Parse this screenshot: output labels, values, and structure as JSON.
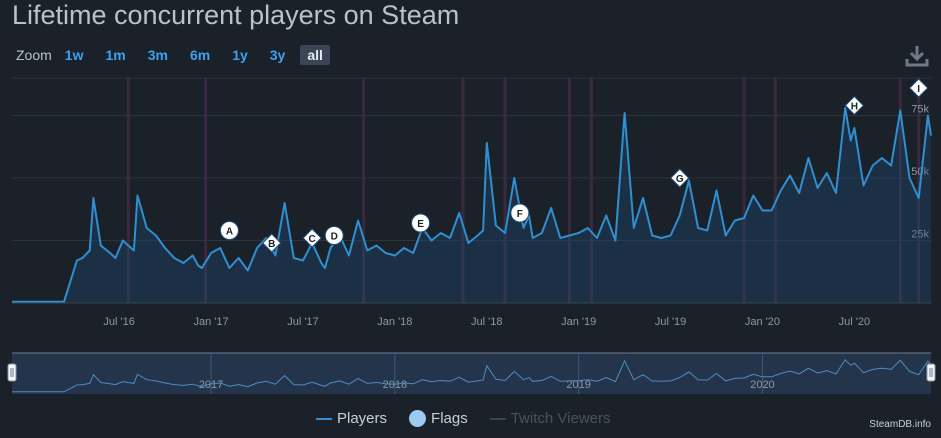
{
  "title": "Lifetime concurrent players on Steam",
  "zoom": {
    "label": "Zoom",
    "buttons": [
      "1w",
      "1m",
      "3m",
      "6m",
      "1y",
      "3y",
      "all"
    ],
    "active": "all"
  },
  "download_icon": "download-icon",
  "legend": {
    "players": "Players",
    "flags": "Flags",
    "twitch": "Twitch Viewers"
  },
  "credit": "SteamDB.info",
  "colors": {
    "background": "#1b2129",
    "players_line": "#2f8fd0",
    "players_fill": "#1e4e78",
    "flags": "#9cc8f2",
    "band": "#3b2840",
    "grid": "#2c343e",
    "navigator": "#2b4363",
    "text": "#c7d0d9"
  },
  "chart_data": {
    "type": "line",
    "title": "Lifetime concurrent players on Steam",
    "xlabel": "",
    "ylabel": "",
    "x_range": [
      2015.917,
      2020.917
    ],
    "y_range": [
      0,
      90000
    ],
    "ylim": [
      0,
      90000
    ],
    "y_ticks": [
      25000,
      50000,
      75000
    ],
    "y_tick_labels": [
      "25k",
      "50k",
      "75k"
    ],
    "x_ticks": [
      2016.5,
      2017.0,
      2017.5,
      2018.0,
      2018.5,
      2019.0,
      2019.5,
      2020.0,
      2020.5
    ],
    "x_tick_labels": [
      "Jul '16",
      "Jan '17",
      "Jul '17",
      "Jan '18",
      "Jul '18",
      "Jan '19",
      "Jul '19",
      "Jan '20",
      "Jul '20"
    ],
    "navigator_ticks": [
      2017.0,
      2018.0,
      2019.0,
      2020.0
    ],
    "navigator_labels": [
      "2017",
      "2018",
      "2019",
      "2020"
    ],
    "series": [
      {
        "name": "Players",
        "x": [
          2015.917,
          2016.2,
          2016.27,
          2016.3,
          2016.34,
          2016.36,
          2016.4,
          2016.45,
          2016.48,
          2016.52,
          2016.55,
          2016.58,
          2016.6,
          2016.65,
          2016.7,
          2016.75,
          2016.8,
          2016.85,
          2016.9,
          2016.93,
          2016.95,
          2017.0,
          2017.05,
          2017.1,
          2017.15,
          2017.2,
          2017.25,
          2017.3,
          2017.35,
          2017.4,
          2017.45,
          2017.5,
          2017.55,
          2017.6,
          2017.62,
          2017.65,
          2017.7,
          2017.75,
          2017.8,
          2017.85,
          2017.9,
          2017.95,
          2018.0,
          2018.05,
          2018.1,
          2018.15,
          2018.2,
          2018.25,
          2018.3,
          2018.35,
          2018.4,
          2018.45,
          2018.48,
          2018.5,
          2018.55,
          2018.6,
          2018.65,
          2018.7,
          2018.73,
          2018.75,
          2018.8,
          2018.85,
          2018.9,
          2018.95,
          2019.0,
          2019.05,
          2019.1,
          2019.15,
          2019.2,
          2019.25,
          2019.3,
          2019.35,
          2019.4,
          2019.45,
          2019.5,
          2019.55,
          2019.6,
          2019.65,
          2019.7,
          2019.75,
          2019.8,
          2019.85,
          2019.9,
          2019.95,
          2020.0,
          2020.05,
          2020.1,
          2020.15,
          2020.2,
          2020.25,
          2020.3,
          2020.35,
          2020.4,
          2020.45,
          2020.48,
          2020.5,
          2020.55,
          2020.6,
          2020.65,
          2020.7,
          2020.75,
          2020.8,
          2020.85,
          2020.9,
          2020.917
        ],
        "y": [
          500,
          500,
          17000,
          18000,
          21000,
          42000,
          23000,
          20000,
          18000,
          25000,
          23000,
          21000,
          43000,
          30000,
          27000,
          22000,
          18000,
          16000,
          19000,
          15000,
          14000,
          20000,
          22000,
          14000,
          18000,
          13000,
          22000,
          26000,
          19000,
          40000,
          18000,
          17000,
          24000,
          16000,
          14000,
          22000,
          27000,
          19000,
          33000,
          21000,
          23000,
          20000,
          19000,
          22000,
          20000,
          30000,
          25000,
          28000,
          26000,
          36000,
          24000,
          27000,
          29000,
          64000,
          31000,
          28000,
          50000,
          30000,
          35000,
          26000,
          28000,
          38000,
          26000,
          27000,
          28000,
          30000,
          26000,
          35000,
          25000,
          76000,
          30000,
          42000,
          27000,
          26000,
          27000,
          35000,
          49000,
          30000,
          29000,
          45000,
          27000,
          33000,
          34000,
          43000,
          37000,
          37000,
          45000,
          51000,
          44000,
          58000,
          46000,
          52000,
          44000,
          78000,
          65000,
          70000,
          47000,
          55000,
          58000,
          55000,
          77000,
          50000,
          42000,
          75000,
          67000
        ]
      },
      {
        "name": "Flags",
        "values": []
      },
      {
        "name": "Twitch Viewers",
        "values": []
      }
    ],
    "flags": [
      {
        "label": "A",
        "x": 2017.1,
        "y": 29000,
        "shape": "circle"
      },
      {
        "label": "B",
        "x": 2017.33,
        "y": 24000,
        "shape": "diamond"
      },
      {
        "label": "C",
        "x": 2017.55,
        "y": 26000,
        "shape": "diamond"
      },
      {
        "label": "D",
        "x": 2017.67,
        "y": 27000,
        "shape": "circle"
      },
      {
        "label": "E",
        "x": 2018.14,
        "y": 32000,
        "shape": "circle"
      },
      {
        "label": "F",
        "x": 2018.68,
        "y": 36000,
        "shape": "circle"
      },
      {
        "label": "G",
        "x": 2019.55,
        "y": 50000,
        "shape": "diamond"
      },
      {
        "label": "H",
        "x": 2020.5,
        "y": 79000,
        "shape": "diamond"
      },
      {
        "label": "I",
        "x": 2020.85,
        "y": 86000,
        "shape": "diamond"
      }
    ],
    "event_bands": [
      2016.55,
      2016.97,
      2017.83,
      2018.37,
      2018.6,
      2018.95,
      2019.07,
      2019.9,
      2020.07,
      2020.75,
      2020.85
    ],
    "legend_position": "bottom-center",
    "grid": true
  }
}
